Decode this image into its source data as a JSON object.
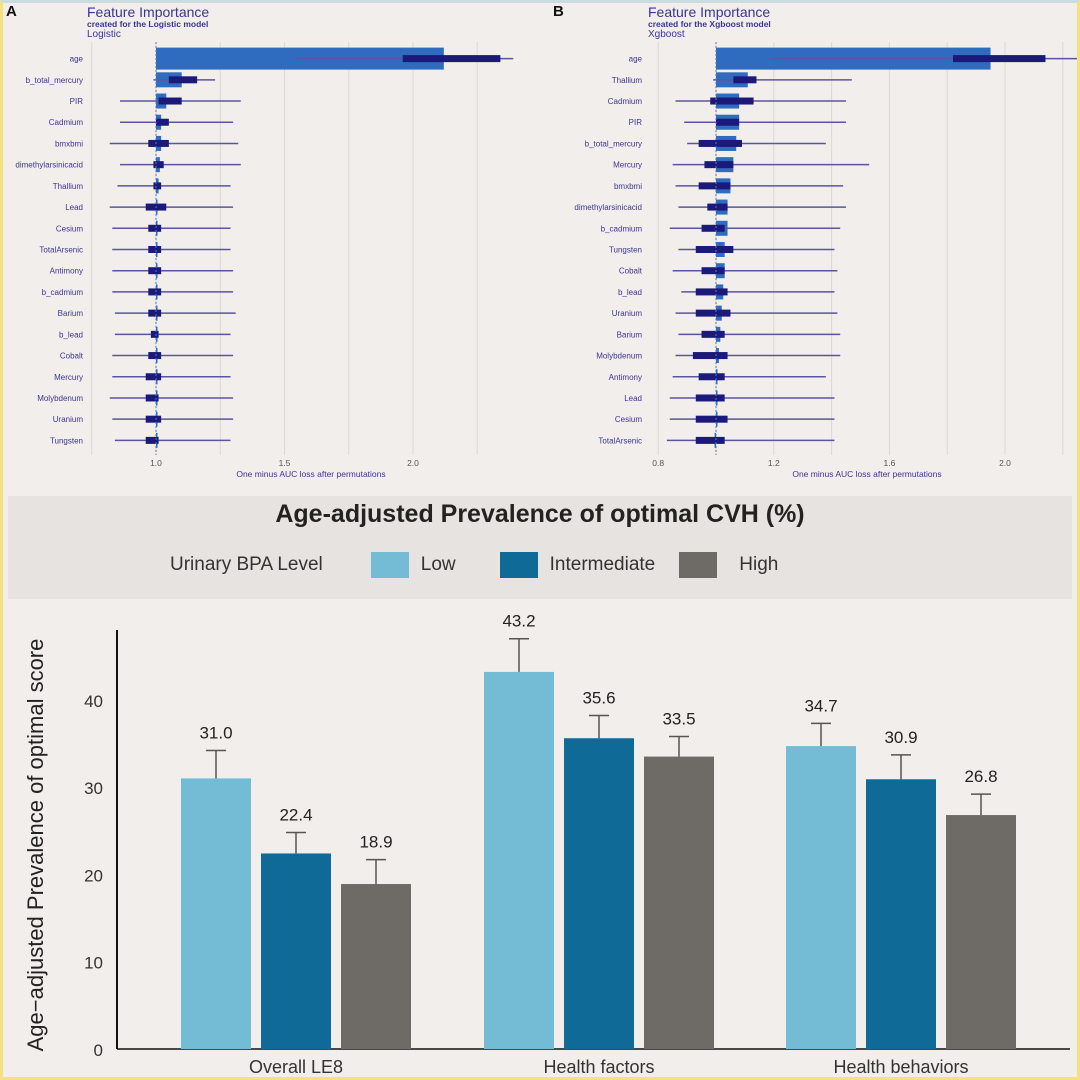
{
  "chart_data": [
    {
      "id": "A",
      "type": "bar",
      "panel_label": "A",
      "title": "Feature Importance",
      "subtitle": "created for the Logistic model",
      "model_label": "Logistic",
      "xlabel": "One minus AUC loss after permutations",
      "xlim": [
        0.75,
        2.4
      ],
      "baseline": 1.0,
      "xticks": [
        1.0,
        1.5,
        2.0
      ],
      "xtick_labels": [
        "1.0",
        "1.5",
        "2.0"
      ],
      "gridlines": [
        0.75,
        1.0,
        1.25,
        1.5,
        1.75,
        2.0,
        2.25
      ],
      "colors": {
        "bar": "#2f6bbf",
        "box": "#1b1a7a",
        "whisker": "#5a55a0",
        "label": "#3a3590"
      },
      "features": [
        {
          "name": "age",
          "value": 2.12,
          "whisker": [
            1.54,
            2.39
          ],
          "box": [
            1.96,
            2.34
          ]
        },
        {
          "name": "b_total_mercury",
          "value": 1.1,
          "whisker": [
            0.99,
            1.23
          ],
          "box": [
            1.05,
            1.16
          ]
        },
        {
          "name": "PIR",
          "value": 1.04,
          "whisker": [
            0.86,
            1.33
          ],
          "box": [
            1.01,
            1.1
          ]
        },
        {
          "name": "Cadmium",
          "value": 1.02,
          "whisker": [
            0.86,
            1.3
          ],
          "box": [
            1.0,
            1.05
          ]
        },
        {
          "name": "bmxbmi",
          "value": 1.02,
          "whisker": [
            0.82,
            1.32
          ],
          "box": [
            0.97,
            1.05
          ]
        },
        {
          "name": "dimethylarsinicacid",
          "value": 1.015,
          "whisker": [
            0.86,
            1.33
          ],
          "box": [
            0.99,
            1.03
          ]
        },
        {
          "name": "Thallium",
          "value": 1.01,
          "whisker": [
            0.85,
            1.29
          ],
          "box": [
            0.99,
            1.02
          ]
        },
        {
          "name": "Lead",
          "value": 1.005,
          "whisker": [
            0.82,
            1.3
          ],
          "box": [
            0.96,
            1.04
          ]
        },
        {
          "name": "Cesium",
          "value": 1.005,
          "whisker": [
            0.83,
            1.29
          ],
          "box": [
            0.97,
            1.02
          ]
        },
        {
          "name": "TotalArsenic",
          "value": 1.005,
          "whisker": [
            0.83,
            1.29
          ],
          "box": [
            0.97,
            1.02
          ]
        },
        {
          "name": "Antimony",
          "value": 1.0,
          "whisker": [
            0.83,
            1.3
          ],
          "box": [
            0.97,
            1.02
          ]
        },
        {
          "name": "b_cadmium",
          "value": 1.0,
          "whisker": [
            0.83,
            1.3
          ],
          "box": [
            0.97,
            1.02
          ]
        },
        {
          "name": "Barium",
          "value": 1.0,
          "whisker": [
            0.84,
            1.31
          ],
          "box": [
            0.97,
            1.02
          ]
        },
        {
          "name": "b_lead",
          "value": 1.0,
          "whisker": [
            0.84,
            1.29
          ],
          "box": [
            0.98,
            1.01
          ]
        },
        {
          "name": "Cobalt",
          "value": 1.0,
          "whisker": [
            0.83,
            1.3
          ],
          "box": [
            0.97,
            1.02
          ]
        },
        {
          "name": "Mercury",
          "value": 1.0,
          "whisker": [
            0.83,
            1.29
          ],
          "box": [
            0.96,
            1.02
          ]
        },
        {
          "name": "Molybdenum",
          "value": 1.0,
          "whisker": [
            0.82,
            1.3
          ],
          "box": [
            0.96,
            1.01
          ]
        },
        {
          "name": "Uranium",
          "value": 1.0,
          "whisker": [
            0.83,
            1.3
          ],
          "box": [
            0.96,
            1.02
          ]
        },
        {
          "name": "Tungsten",
          "value": 1.0,
          "whisker": [
            0.84,
            1.29
          ],
          "box": [
            0.96,
            1.01
          ]
        }
      ]
    },
    {
      "id": "B",
      "type": "bar",
      "panel_label": "B",
      "title": "Feature Importance",
      "subtitle": "created for the Xgboost model",
      "model_label": "Xgboost",
      "xlabel": "One minus AUC loss after permutations",
      "xlim": [
        0.8,
        2.25
      ],
      "baseline": 1.0,
      "xticks": [
        0.8,
        1.2,
        1.6,
        2.0
      ],
      "xtick_labels": [
        "0.8",
        "1.2",
        "1.6",
        "2.0"
      ],
      "gridlines": [
        0.8,
        1.0,
        1.2,
        1.4,
        1.6,
        1.8,
        2.0,
        2.2
      ],
      "colors": {
        "bar": "#2f6bbf",
        "box": "#1b1a7a",
        "whisker": "#5a55a0",
        "label": "#3a3590"
      },
      "features": [
        {
          "name": "age",
          "value": 1.95,
          "whisker": [
            1.19,
            2.25
          ],
          "box": [
            1.82,
            2.14
          ]
        },
        {
          "name": "Thallium",
          "value": 1.11,
          "whisker": [
            0.99,
            1.47
          ],
          "box": [
            1.06,
            1.14
          ]
        },
        {
          "name": "Cadmium",
          "value": 1.08,
          "whisker": [
            0.86,
            1.45
          ],
          "box": [
            0.98,
            1.13
          ]
        },
        {
          "name": "PIR",
          "value": 1.08,
          "whisker": [
            0.89,
            1.45
          ],
          "box": [
            1.0,
            1.08
          ]
        },
        {
          "name": "b_total_mercury",
          "value": 1.07,
          "whisker": [
            0.9,
            1.38
          ],
          "box": [
            0.94,
            1.09
          ]
        },
        {
          "name": "Mercury",
          "value": 1.06,
          "whisker": [
            0.85,
            1.53
          ],
          "box": [
            0.96,
            1.06
          ]
        },
        {
          "name": "bmxbmi",
          "value": 1.05,
          "whisker": [
            0.86,
            1.44
          ],
          "box": [
            0.94,
            1.05
          ]
        },
        {
          "name": "dimethylarsinicacid",
          "value": 1.04,
          "whisker": [
            0.87,
            1.45
          ],
          "box": [
            0.97,
            1.04
          ]
        },
        {
          "name": "b_cadmium",
          "value": 1.04,
          "whisker": [
            0.84,
            1.43
          ],
          "box": [
            0.95,
            1.03
          ]
        },
        {
          "name": "Tungsten",
          "value": 1.03,
          "whisker": [
            0.87,
            1.41
          ],
          "box": [
            0.93,
            1.06
          ]
        },
        {
          "name": "Cobalt",
          "value": 1.03,
          "whisker": [
            0.85,
            1.42
          ],
          "box": [
            0.95,
            1.03
          ]
        },
        {
          "name": "b_lead",
          "value": 1.025,
          "whisker": [
            0.88,
            1.41
          ],
          "box": [
            0.93,
            1.04
          ]
        },
        {
          "name": "Uranium",
          "value": 1.02,
          "whisker": [
            0.86,
            1.42
          ],
          "box": [
            0.93,
            1.05
          ]
        },
        {
          "name": "Barium",
          "value": 1.015,
          "whisker": [
            0.87,
            1.43
          ],
          "box": [
            0.95,
            1.03
          ]
        },
        {
          "name": "Molybdenum",
          "value": 1.01,
          "whisker": [
            0.86,
            1.43
          ],
          "box": [
            0.92,
            1.04
          ]
        },
        {
          "name": "Antimony",
          "value": 1.005,
          "whisker": [
            0.85,
            1.38
          ],
          "box": [
            0.94,
            1.03
          ]
        },
        {
          "name": "Lead",
          "value": 1.0,
          "whisker": [
            0.84,
            1.41
          ],
          "box": [
            0.93,
            1.03
          ]
        },
        {
          "name": "Cesium",
          "value": 1.0,
          "whisker": [
            0.84,
            1.41
          ],
          "box": [
            0.93,
            1.04
          ]
        },
        {
          "name": "TotalArsenic",
          "value": 0.995,
          "whisker": [
            0.83,
            1.41
          ],
          "box": [
            0.93,
            1.03
          ]
        }
      ]
    },
    {
      "id": "C",
      "type": "bar",
      "title": "Age-adjusted Prevalence of optimal CVH (%)",
      "legend_title": "Urinary BPA Level",
      "legend_placement": "top",
      "ylabel": "Age−adjusted Prevalence of optimal score",
      "xlabel": "",
      "ylim": [
        0,
        48
      ],
      "yticks": [
        0,
        10,
        20,
        30,
        40
      ],
      "categories": [
        "Overall LE8",
        "Health factors",
        "Health behaviors"
      ],
      "series": [
        {
          "name": "Low",
          "color": "#74bcd6",
          "values": [
            31.0,
            43.2,
            34.7
          ],
          "labels": [
            "31.0",
            "43.2",
            "34.7"
          ],
          "error_upper": [
            34.2,
            47.0,
            37.3
          ]
        },
        {
          "name": "Intermediate",
          "color": "#0f6a98",
          "values": [
            22.4,
            35.6,
            30.9
          ],
          "labels": [
            "22.4",
            "35.6",
            "30.9"
          ],
          "error_upper": [
            24.8,
            38.2,
            33.7
          ]
        },
        {
          "name": "High",
          "color": "#6e6a66",
          "values": [
            18.9,
            33.5,
            26.8
          ],
          "labels": [
            "18.9",
            "33.5",
            "26.8"
          ],
          "error_upper": [
            21.7,
            35.8,
            29.2
          ]
        }
      ]
    }
  ]
}
